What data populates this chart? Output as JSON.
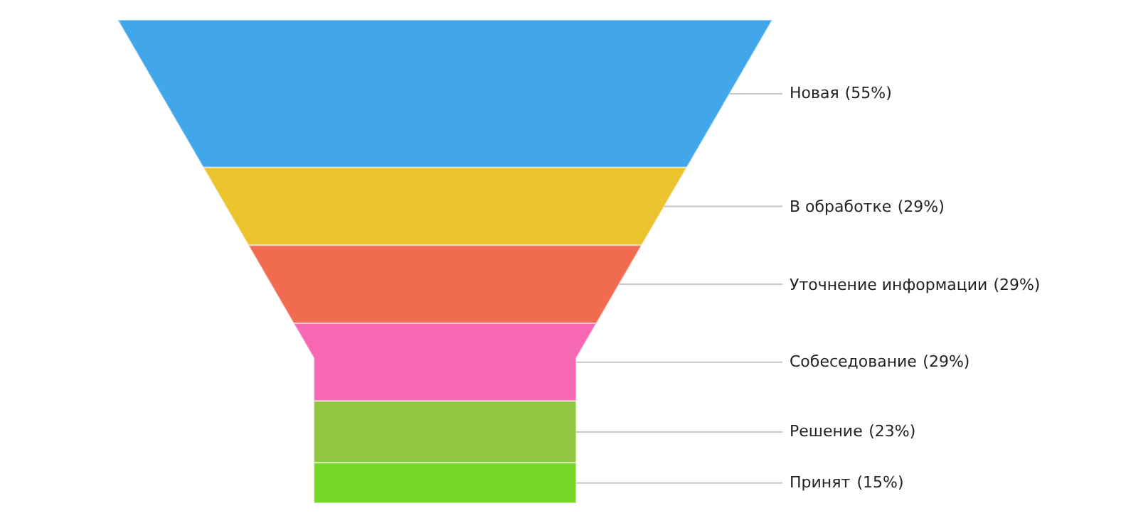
{
  "chart_data": {
    "type": "other",
    "categories": [
      "Новая",
      "В обработке",
      "Уточнение информации",
      "Собеседование",
      "Решение",
      "Принят"
    ],
    "values": [
      55,
      29,
      29,
      29,
      23,
      15
    ],
    "value_labels": [
      "(55%)",
      "(29%)",
      "(29%)",
      "(29%)",
      "(23%)",
      "(15%)"
    ],
    "data_labels": true,
    "colors": [
      "#42a7ea",
      "#ebc32d",
      "#f06b4f",
      "#f768b4",
      "#8fc742",
      "#77d626"
    ]
  }
}
